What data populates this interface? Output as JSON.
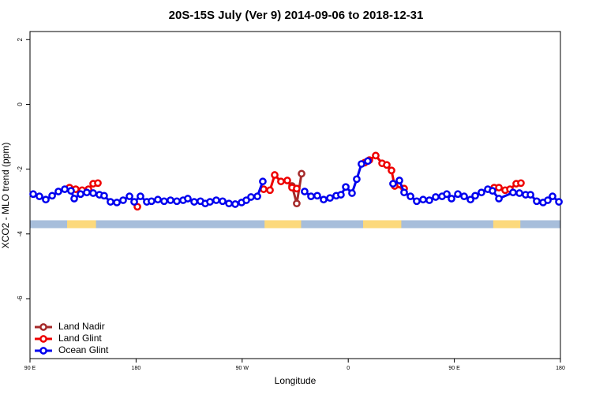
{
  "chart_data": {
    "type": "line",
    "title": "20S-15S July (Ver 9)   2014-09-06 to 2018-12-31",
    "x_label": "Longitude",
    "y_label": "XCO2 - MLO trend (ppm)",
    "xlim": [
      90,
      540
    ],
    "xticks": [
      {
        "value": 90,
        "label": "90 E"
      },
      {
        "value": 180,
        "label": "180"
      },
      {
        "value": 270,
        "label": "90 W"
      },
      {
        "value": 360,
        "label": "0"
      },
      {
        "value": 450,
        "label": "90 E"
      },
      {
        "value": 540,
        "label": "180"
      }
    ],
    "ylim": [
      -7.85,
      2.25
    ],
    "yticks": [
      2,
      0,
      -2,
      -4,
      -6
    ],
    "legend": "bottom-left",
    "mask": {
      "level": -3.7,
      "ocean_color": "#a7bedb",
      "land_color": "#fcd97c",
      "land": [
        [
          121.5,
          146
        ],
        [
          289,
          320
        ],
        [
          372.6,
          405
        ],
        [
          483,
          506
        ]
      ]
    },
    "series": [
      {
        "name": "Land Nadir",
        "color": "#a52a2a",
        "x": [
          312.3,
          316.3,
          320.4
        ],
        "values": [
          -2.52,
          -3.06,
          -2.14
        ]
      },
      {
        "name": "Land Glint",
        "color": "#ee0000",
        "x": [
          123.5,
          128.8,
          134.2,
          139.6,
          143.6,
          147.6,
          164,
          181.1,
          270,
          288.2,
          293.6,
          297.6,
          302.9,
          308.3,
          312.3,
          316.3,
          345,
          373.9,
          377.9,
          383.3,
          388.7,
          392.7,
          396.7,
          399.4,
          407.4,
          450,
          483.8,
          487.8,
          493.1,
          497.2,
          502.5,
          506.5
        ],
        "values": [
          -2.57,
          -2.62,
          -2.65,
          -2.62,
          -2.45,
          -2.43,
          null,
          -3.16,
          null,
          -2.62,
          -2.65,
          -2.18,
          -2.38,
          -2.35,
          -2.57,
          -2.6,
          null,
          -1.8,
          -1.72,
          -1.58,
          -1.82,
          -1.87,
          -2.04,
          -2.52,
          -2.6,
          null,
          -2.57,
          -2.57,
          -2.65,
          -2.62,
          -2.45,
          -2.43
        ]
      },
      {
        "name": "Ocean Glint",
        "color": "#0000ee",
        "x": [
          92.7,
          98.0,
          103.4,
          108.8,
          114.1,
          119.5,
          124.8,
          127.5,
          132.9,
          138.2,
          143.6,
          148.9,
          152.9,
          158.3,
          163.7,
          169.0,
          174.4,
          178.4,
          183.7,
          189.1,
          193.1,
          198.5,
          203.8,
          209.2,
          214.6,
          219.9,
          223.9,
          229.3,
          234.6,
          238.7,
          242.7,
          248.0,
          253.4,
          258.8,
          264.1,
          269.5,
          273.5,
          277.5,
          282.9,
          287.5,
          305,
          323.0,
          328.4,
          333.7,
          339.1,
          344.5,
          349.8,
          353.8,
          357.9,
          363.2,
          367.2,
          371.2,
          376.6,
          387,
          398.0,
          403.4,
          407.4,
          412.8,
          418.1,
          423.5,
          428.8,
          434.2,
          439.6,
          443.6,
          447.6,
          453.0,
          458.3,
          463.7,
          467.7,
          473.0,
          478.4,
          482.4,
          487.8,
          499.8,
          505.2,
          510.5,
          514.6,
          519.9,
          525.3,
          529.3,
          533.3,
          538.7
        ],
        "values": [
          -2.77,
          -2.84,
          -2.94,
          -2.82,
          -2.69,
          -2.62,
          -2.67,
          -2.91,
          -2.77,
          -2.72,
          -2.74,
          -2.79,
          -2.82,
          -3.01,
          -3.03,
          -2.96,
          -2.84,
          -3.01,
          -2.84,
          -3.01,
          -2.99,
          -2.94,
          -2.99,
          -2.96,
          -2.99,
          -2.96,
          -2.91,
          -3.01,
          -2.99,
          -3.06,
          -3.01,
          -2.96,
          -2.99,
          -3.06,
          -3.08,
          -3.03,
          -2.96,
          -2.86,
          -2.84,
          -2.38,
          null,
          -2.69,
          -2.84,
          -2.82,
          -2.94,
          -2.89,
          -2.82,
          -2.79,
          -2.55,
          -2.74,
          -2.31,
          -1.84,
          -1.75,
          null,
          -2.45,
          -2.35,
          -2.72,
          -2.84,
          -2.99,
          -2.94,
          -2.96,
          -2.86,
          -2.84,
          -2.77,
          -2.91,
          -2.77,
          -2.84,
          -2.94,
          -2.82,
          -2.72,
          -2.62,
          -2.67,
          -2.91,
          -2.72,
          -2.74,
          -2.79,
          -2.79,
          -2.99,
          -3.03,
          -2.96,
          -2.84,
          -3.01
        ]
      }
    ]
  }
}
